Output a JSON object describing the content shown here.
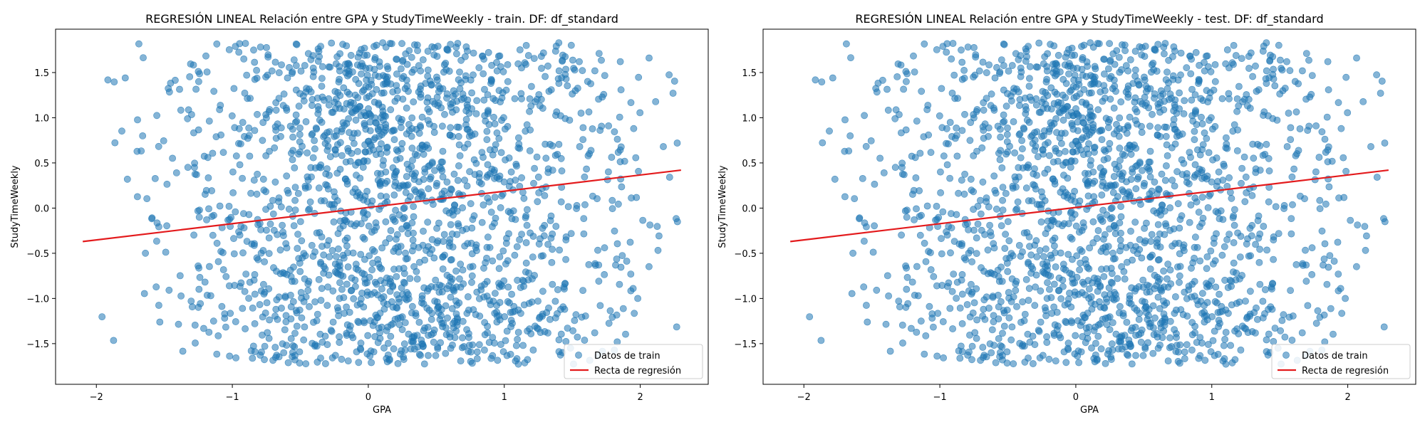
{
  "chart_data": [
    {
      "type": "scatter",
      "title": "REGRESIÓN LINEAL Relación entre GPA y StudyTimeWeekly - train. DF: df_standard",
      "xlabel": "GPA",
      "ylabel": "StudyTimeWeekly",
      "xlim": [
        -2.3,
        2.5
      ],
      "ylim": [
        -1.95,
        1.98
      ],
      "xticks": [
        -2,
        -1,
        0,
        1,
        2
      ],
      "yticks": [
        -1.5,
        -1.0,
        -0.5,
        0.0,
        0.5,
        1.0,
        1.5
      ],
      "xtick_labels": [
        "−2",
        "−1",
        "0",
        "1",
        "2"
      ],
      "ytick_labels": [
        "−1.5",
        "−1.0",
        "−0.5",
        "0.0",
        "0.5",
        "1.0",
        "1.5"
      ],
      "grid": false,
      "legend_position": "bottom-right",
      "series": [
        {
          "name": "Datos de train",
          "kind": "scatter",
          "color": "#1f77b4",
          "alpha": 0.55,
          "approx_points": 1900,
          "x_range": [
            -2.1,
            2.3
          ],
          "y_range": [
            -1.73,
            1.83
          ]
        },
        {
          "name": "Recta de regresión",
          "kind": "line",
          "color": "#e31a1c",
          "x": [
            -2.1,
            2.3
          ],
          "y": [
            -0.37,
            0.42
          ]
        }
      ]
    },
    {
      "type": "scatter",
      "title": "REGRESIÓN LINEAL Relación entre GPA y StudyTimeWeekly - test. DF: df_standard",
      "xlabel": "GPA",
      "ylabel": "StudyTimeWeekly",
      "xlim": [
        -2.3,
        2.5
      ],
      "ylim": [
        -1.95,
        1.98
      ],
      "xticks": [
        -2,
        -1,
        0,
        1,
        2
      ],
      "yticks": [
        -1.5,
        -1.0,
        -0.5,
        0.0,
        0.5,
        1.0,
        1.5
      ],
      "xtick_labels": [
        "−2",
        "−1",
        "0",
        "1",
        "2"
      ],
      "ytick_labels": [
        "−1.5",
        "−1.0",
        "−0.5",
        "0.0",
        "0.5",
        "1.0",
        "1.5"
      ],
      "grid": false,
      "legend_position": "bottom-right",
      "series": [
        {
          "name": "Datos de train",
          "kind": "scatter",
          "color": "#1f77b4",
          "alpha": 0.55,
          "approx_points": 1900,
          "x_range": [
            -2.1,
            2.3
          ],
          "y_range": [
            -1.73,
            1.83
          ]
        },
        {
          "name": "Recta de regresión",
          "kind": "line",
          "color": "#e31a1c",
          "x": [
            -2.1,
            2.3
          ],
          "y": [
            -0.37,
            0.42
          ]
        }
      ]
    }
  ]
}
